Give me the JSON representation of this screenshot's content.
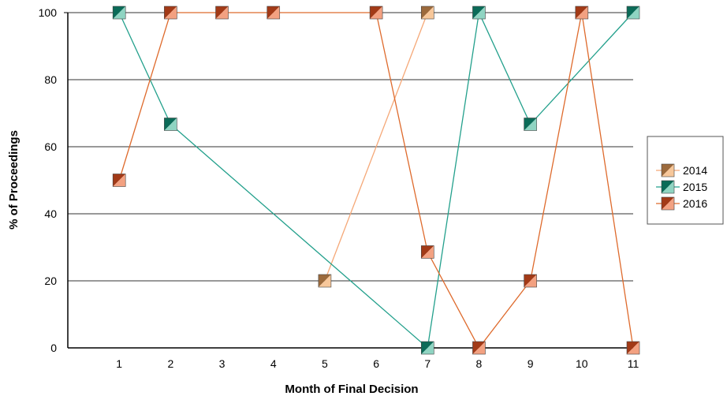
{
  "chart_data": {
    "type": "line",
    "title": "",
    "xlabel": "Month of Final Decision",
    "ylabel": "% of Proceedings",
    "x": [
      1,
      2,
      3,
      4,
      5,
      6,
      7,
      8,
      9,
      10,
      11
    ],
    "xlim": [
      0,
      11
    ],
    "ylim": [
      0,
      100
    ],
    "yticks": [
      0,
      20,
      40,
      60,
      80,
      100
    ],
    "grid": "horizontal",
    "legend_position": "right",
    "series": [
      {
        "name": "2014",
        "line_color": "#f5a878",
        "marker_dark": "#9c6a3c",
        "marker_light": "#f7c79a",
        "points": [
          [
            5,
            20
          ],
          [
            7,
            100
          ]
        ]
      },
      {
        "name": "2015",
        "line_color": "#23a08c",
        "marker_dark": "#0b6b58",
        "marker_light": "#8fd4c2",
        "points": [
          [
            1,
            100
          ],
          [
            2,
            66.7
          ],
          [
            7,
            0
          ],
          [
            8,
            100
          ],
          [
            9,
            66.7
          ],
          [
            11,
            100
          ]
        ]
      },
      {
        "name": "2016",
        "line_color": "#de6a2c",
        "marker_dark": "#a23a17",
        "marker_light": "#f3a181",
        "points": [
          [
            1,
            50
          ],
          [
            2,
            100
          ],
          [
            3,
            100
          ],
          [
            4,
            100
          ],
          [
            6,
            100
          ],
          [
            7,
            28.6
          ],
          [
            8,
            0
          ],
          [
            9,
            20
          ],
          [
            10,
            100
          ],
          [
            11,
            0
          ]
        ]
      }
    ]
  }
}
